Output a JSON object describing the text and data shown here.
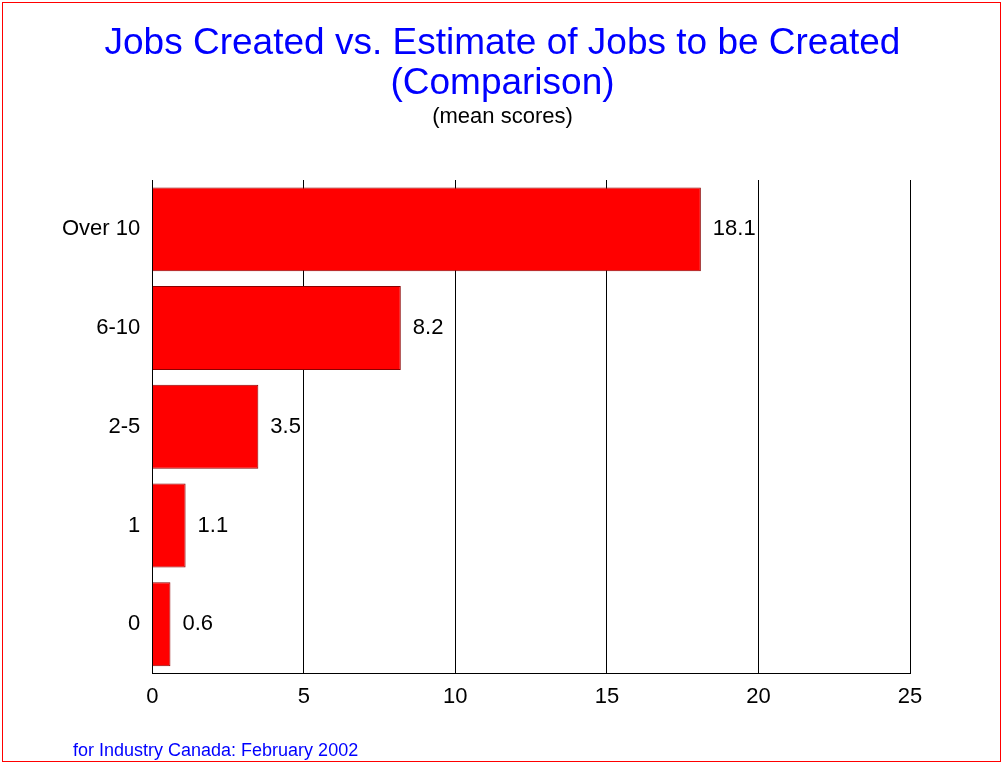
{
  "chart_data": {
    "type": "bar",
    "title": "Jobs Created vs. Estimate of Jobs to be Created (Comparison)",
    "subtitle": "(mean scores)",
    "orientation": "horizontal",
    "categories": [
      "Over 10",
      "6-10",
      "2-5",
      "1",
      "0"
    ],
    "values": [
      18.1,
      8.2,
      3.5,
      1.1,
      0.6
    ],
    "color": "#ff0000",
    "xlim": [
      0,
      25
    ],
    "xticks": [
      0,
      5,
      10,
      15,
      20,
      25
    ],
    "grid": "x",
    "data_labels": true,
    "annotations": [
      "for Industry Canada: February 2002"
    ]
  }
}
